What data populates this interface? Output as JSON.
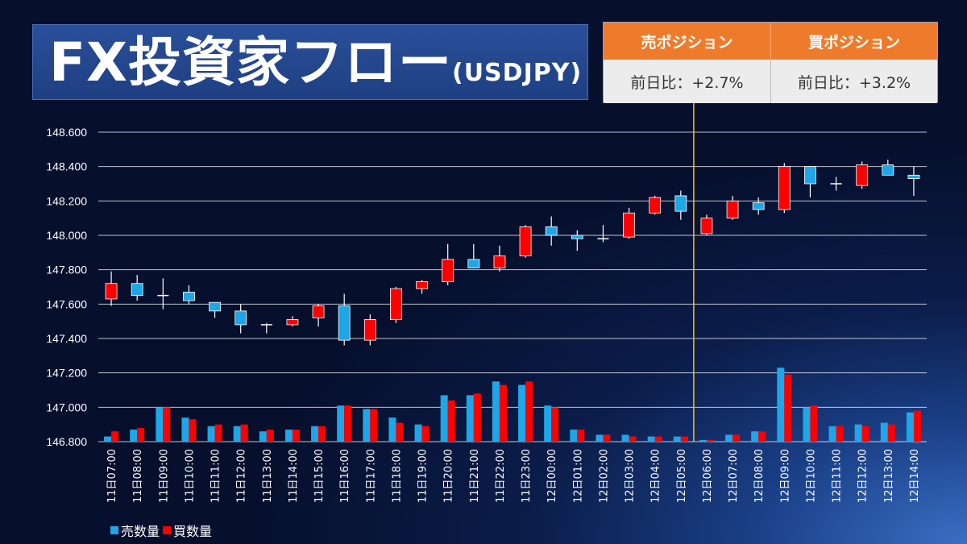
{
  "header": {
    "title": "FX投資家フロー",
    "pair": "(USDJPY)"
  },
  "positions": {
    "sell_label": "売ポジション",
    "buy_label": "買ポジション",
    "sell_change": "前日比：+2.7%",
    "buy_change": "前日比：+3.2%"
  },
  "colors": {
    "sell": "#1ea7e8",
    "buy": "#ff0000",
    "divider": "#ffc000",
    "header_orange": "#ee7b2c"
  },
  "chart_data": {
    "type": "candlestick+bar",
    "ylim": [
      146.8,
      148.6
    ],
    "yticks": [
      "148.600",
      "148.400",
      "148.200",
      "148.000",
      "147.800",
      "147.600",
      "147.400",
      "147.200",
      "147.000",
      "146.800"
    ],
    "divider_after_index": 22,
    "categories": [
      "11日07:00",
      "11日08:00",
      "11日09:00",
      "11日10:00",
      "11日11:00",
      "11日12:00",
      "11日13:00",
      "11日14:00",
      "11日15:00",
      "11日16:00",
      "11日17:00",
      "11日18:00",
      "11日19:00",
      "11日20:00",
      "11日21:00",
      "11日22:00",
      "11日23:00",
      "12日00:00",
      "12日01:00",
      "12日02:00",
      "12日03:00",
      "12日04:00",
      "12日05:00",
      "12日06:00",
      "12日07:00",
      "12日08:00",
      "12日09:00",
      "12日10:00",
      "12日11:00",
      "12日12:00",
      "12日13:00",
      "12日14:00"
    ],
    "candles": [
      {
        "o": 147.63,
        "h": 147.79,
        "l": 147.59,
        "c": 147.72
      },
      {
        "o": 147.72,
        "h": 147.77,
        "l": 147.62,
        "c": 147.65
      },
      {
        "o": 147.65,
        "h": 147.75,
        "l": 147.57,
        "c": 147.65
      },
      {
        "o": 147.67,
        "h": 147.71,
        "l": 147.6,
        "c": 147.62
      },
      {
        "o": 147.61,
        "h": 147.61,
        "l": 147.52,
        "c": 147.56
      },
      {
        "o": 147.56,
        "h": 147.6,
        "l": 147.43,
        "c": 147.48
      },
      {
        "o": 147.48,
        "h": 147.49,
        "l": 147.43,
        "c": 147.48
      },
      {
        "o": 147.48,
        "h": 147.53,
        "l": 147.47,
        "c": 147.51
      },
      {
        "o": 147.52,
        "h": 147.6,
        "l": 147.47,
        "c": 147.59
      },
      {
        "o": 147.59,
        "h": 147.66,
        "l": 147.36,
        "c": 147.39
      },
      {
        "o": 147.39,
        "h": 147.54,
        "l": 147.36,
        "c": 147.51
      },
      {
        "o": 147.51,
        "h": 147.7,
        "l": 147.49,
        "c": 147.69
      },
      {
        "o": 147.69,
        "h": 147.74,
        "l": 147.66,
        "c": 147.73
      },
      {
        "o": 147.73,
        "h": 147.95,
        "l": 147.71,
        "c": 147.86
      },
      {
        "o": 147.86,
        "h": 147.95,
        "l": 147.81,
        "c": 147.81
      },
      {
        "o": 147.81,
        "h": 147.94,
        "l": 147.79,
        "c": 147.88
      },
      {
        "o": 147.88,
        "h": 148.06,
        "l": 147.87,
        "c": 148.05
      },
      {
        "o": 148.05,
        "h": 148.11,
        "l": 147.94,
        "c": 148.0
      },
      {
        "o": 148.0,
        "h": 148.03,
        "l": 147.91,
        "c": 147.98
      },
      {
        "o": 147.98,
        "h": 148.06,
        "l": 147.96,
        "c": 147.98
      },
      {
        "o": 147.99,
        "h": 148.16,
        "l": 147.98,
        "c": 148.13
      },
      {
        "o": 148.13,
        "h": 148.23,
        "l": 148.12,
        "c": 148.22
      },
      {
        "o": 148.23,
        "h": 148.26,
        "l": 148.09,
        "c": 148.14
      },
      {
        "o": 148.01,
        "h": 148.12,
        "l": 148.0,
        "c": 148.1
      },
      {
        "o": 148.1,
        "h": 148.23,
        "l": 148.09,
        "c": 148.2
      },
      {
        "o": 148.19,
        "h": 148.22,
        "l": 148.12,
        "c": 148.15
      },
      {
        "o": 148.15,
        "h": 148.42,
        "l": 148.13,
        "c": 148.4
      },
      {
        "o": 148.4,
        "h": 148.4,
        "l": 148.22,
        "c": 148.3
      },
      {
        "o": 148.3,
        "h": 148.34,
        "l": 148.26,
        "c": 148.3
      },
      {
        "o": 148.29,
        "h": 148.43,
        "l": 148.27,
        "c": 148.41
      },
      {
        "o": 148.41,
        "h": 148.44,
        "l": 148.35,
        "c": 148.35
      },
      {
        "o": 148.35,
        "h": 148.4,
        "l": 148.23,
        "c": 148.33
      }
    ],
    "series": [
      {
        "name": "売数量",
        "values": [
          146.83,
          146.87,
          147.0,
          146.94,
          146.89,
          146.89,
          146.86,
          146.87,
          146.89,
          147.01,
          146.99,
          146.94,
          146.9,
          147.07,
          147.07,
          147.15,
          147.13,
          147.01,
          146.87,
          146.84,
          146.84,
          146.83,
          146.83,
          146.81,
          146.84,
          146.86,
          147.23,
          147.0,
          146.89,
          146.9,
          146.91,
          146.97
        ]
      },
      {
        "name": "買数量",
        "values": [
          146.86,
          146.88,
          147.0,
          146.93,
          146.9,
          146.9,
          146.87,
          146.87,
          146.89,
          147.01,
          146.99,
          146.91,
          146.89,
          147.04,
          147.08,
          147.13,
          147.15,
          147.0,
          146.87,
          146.84,
          146.83,
          146.83,
          146.83,
          146.81,
          146.84,
          146.86,
          147.19,
          147.01,
          146.89,
          146.89,
          146.9,
          146.98
        ]
      }
    ]
  }
}
